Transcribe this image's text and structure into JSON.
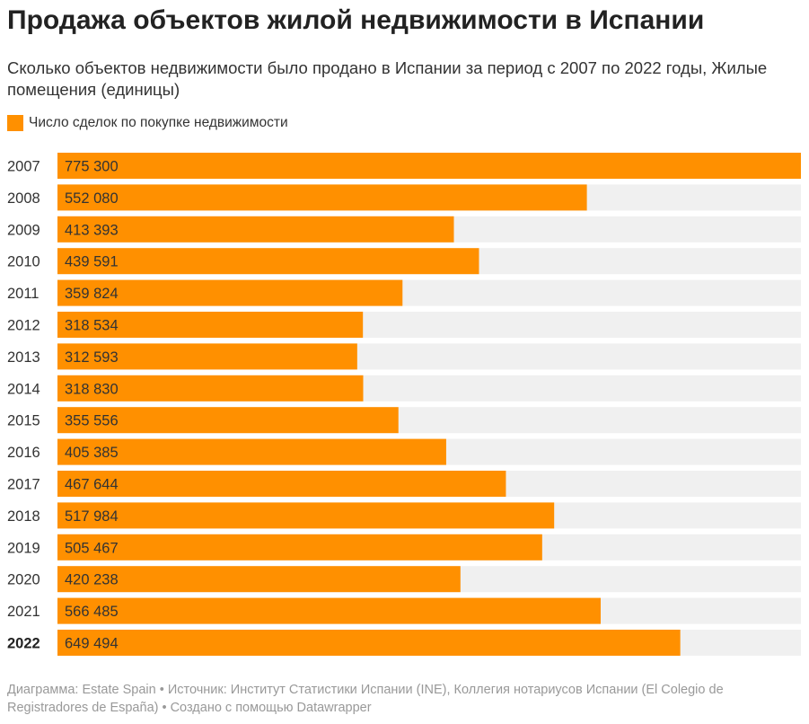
{
  "header": {
    "title": "Продажа объектов жилой недвижимости в Испании",
    "subtitle": "Сколько объектов недвижимости было продано в Испании за период с 2007 по 2022 годы, Жилые помещения (единицы)"
  },
  "legend": {
    "label": "Число сделок по покупке недвижимости",
    "color": "#ff9000"
  },
  "chart_data": {
    "type": "bar",
    "orientation": "horizontal",
    "title": "Продажа объектов жилой недвижимости в Испании",
    "subtitle": "Сколько объектов недвижимости было продано в Испании за период с 2007 по 2022 годы, Жилые помещения (единицы)",
    "xlabel": "",
    "ylabel": "",
    "xlim": [
      0,
      775300
    ],
    "grid": false,
    "legend_position": "top-left",
    "highlight_category": "2022",
    "colors": {
      "bar": "#ff9000",
      "track": "#f0f0f0"
    },
    "categories": [
      "2007",
      "2008",
      "2009",
      "2010",
      "2011",
      "2012",
      "2013",
      "2014",
      "2015",
      "2016",
      "2017",
      "2018",
      "2019",
      "2020",
      "2021",
      "2022"
    ],
    "series": [
      {
        "name": "Число сделок по покупке недвижимости",
        "values": [
          775300,
          552080,
          413393,
          439591,
          359824,
          318534,
          312593,
          318830,
          355556,
          405385,
          467644,
          517984,
          505467,
          420238,
          566485,
          649494
        ],
        "labels": [
          "775 300",
          "552 080",
          "413 393",
          "439 591",
          "359 824",
          "318 534",
          "312 593",
          "318 830",
          "355 556",
          "405 385",
          "467 644",
          "517 984",
          "505 467",
          "420 238",
          "566 485",
          "649 494"
        ]
      }
    ]
  },
  "footer": {
    "text": "Диаграмма: Estate Spain • Источник: Институт Статистики Испании (INE), Коллегия нотариусов Испании (El Colegio de Registradores de España) • Создано с помощью Datawrapper"
  }
}
